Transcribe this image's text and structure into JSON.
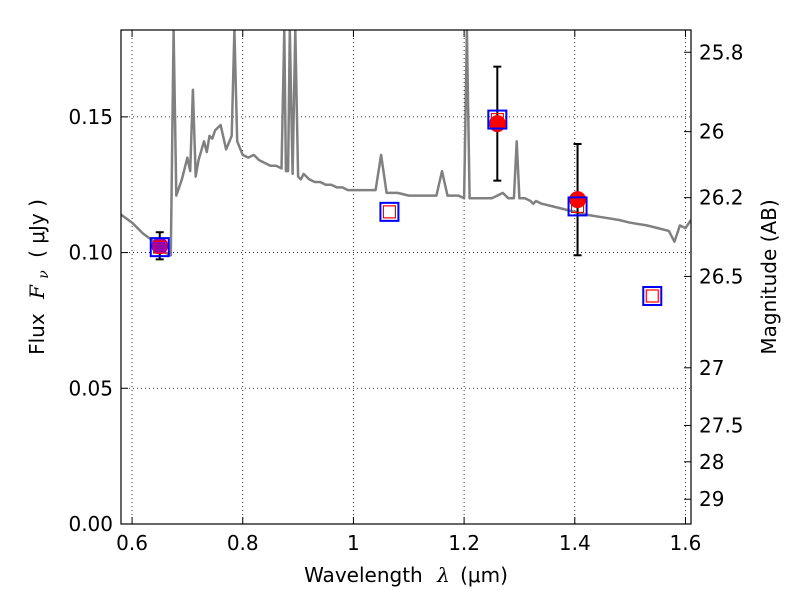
{
  "chart_data": {
    "type": "scatter",
    "xlabel": "Wavelength",
    "xlabel_symbol": "λ",
    "xlabel_unit": "(μm)",
    "ylabel": "Flux",
    "ylabel_symbol": "F",
    "ylabel_subscript": "ν",
    "ylabel_unit": "( μJy )",
    "y2label": "Magnitude (AB)",
    "xlim": [
      0.58,
      1.61
    ],
    "ylim": [
      0.0,
      0.182
    ],
    "x_ticks": [
      0.6,
      0.8,
      1.0,
      1.2,
      1.4,
      1.6
    ],
    "x_tick_labels": [
      "0.6",
      "0.8",
      "1",
      "1.2",
      "1.4",
      "1.6"
    ],
    "y_ticks": [
      0.0,
      0.05,
      0.1,
      0.15
    ],
    "y_tick_labels": [
      "0.00",
      "0.05",
      "0.10",
      "0.15"
    ],
    "y2_ticks": [
      25.8,
      26.0,
      26.2,
      26.5,
      27.0,
      27.5,
      28.0,
      29.0
    ],
    "y2_tick_labels": [
      "25.8",
      "26",
      "26.2",
      "26.5",
      "27",
      "27.5",
      "28",
      "29"
    ],
    "grid": true,
    "series": [
      {
        "style": "line",
        "color": "#808080",
        "x": [
          0.58,
          0.6,
          0.62,
          0.64,
          0.66,
          0.67,
          0.675,
          0.68,
          0.69,
          0.7,
          0.705,
          0.71,
          0.715,
          0.72,
          0.73,
          0.735,
          0.74,
          0.745,
          0.75,
          0.76,
          0.77,
          0.78,
          0.785,
          0.79,
          0.8,
          0.81,
          0.82,
          0.83,
          0.84,
          0.85,
          0.86,
          0.87,
          0.875,
          0.878,
          0.882,
          0.885,
          0.89,
          0.895,
          0.9,
          0.905,
          0.91,
          0.92,
          0.93,
          0.94,
          0.95,
          0.96,
          0.97,
          0.98,
          0.99,
          1.0,
          1.02,
          1.04,
          1.05,
          1.06,
          1.065,
          1.07,
          1.08,
          1.1,
          1.12,
          1.15,
          1.16,
          1.17,
          1.18,
          1.19,
          1.2,
          1.205,
          1.21,
          1.22,
          1.23,
          1.24,
          1.25,
          1.26,
          1.27,
          1.28,
          1.29,
          1.295,
          1.3,
          1.31,
          1.32,
          1.325,
          1.33,
          1.34,
          1.36,
          1.38,
          1.4,
          1.42,
          1.45,
          1.48,
          1.5,
          1.53,
          1.55,
          1.57,
          1.58,
          1.585,
          1.59,
          1.6,
          1.61
        ],
        "y": [
          0.114,
          0.111,
          0.107,
          0.104,
          0.1,
          0.099,
          0.182,
          0.121,
          0.127,
          0.135,
          0.13,
          0.16,
          0.128,
          0.134,
          0.141,
          0.137,
          0.143,
          0.142,
          0.145,
          0.147,
          0.138,
          0.143,
          0.182,
          0.141,
          0.136,
          0.135,
          0.136,
          0.134,
          0.133,
          0.132,
          0.132,
          0.131,
          0.182,
          0.13,
          0.13,
          0.182,
          0.129,
          0.182,
          0.128,
          0.127,
          0.129,
          0.127,
          0.126,
          0.126,
          0.125,
          0.125,
          0.124,
          0.124,
          0.123,
          0.123,
          0.123,
          0.123,
          0.136,
          0.122,
          0.122,
          0.122,
          0.122,
          0.121,
          0.121,
          0.121,
          0.13,
          0.121,
          0.121,
          0.121,
          0.12,
          0.182,
          0.12,
          0.12,
          0.12,
          0.12,
          0.12,
          0.121,
          0.122,
          0.12,
          0.12,
          0.141,
          0.12,
          0.12,
          0.119,
          0.118,
          0.119,
          0.118,
          0.117,
          0.116,
          0.115,
          0.114,
          0.113,
          0.112,
          0.111,
          0.11,
          0.109,
          0.108,
          0.104,
          0.107,
          0.11,
          0.109,
          0.112
        ]
      },
      {
        "style": "markers",
        "marker": "circle",
        "errorbars": true,
        "colors": [
          "#9a00a8",
          "#ff0000",
          "#ff0000"
        ],
        "x": [
          0.65,
          1.26,
          1.405
        ],
        "y": [
          0.1025,
          0.1475,
          0.1195
        ],
        "yerr": [
          0.005,
          0.021,
          0.0205
        ]
      },
      {
        "style": "markers",
        "marker": "square-open",
        "edgecolor": "#0000ff",
        "x": [
          0.65,
          1.065,
          1.26,
          1.405,
          1.54
        ],
        "y": [
          0.102,
          0.115,
          0.149,
          0.117,
          0.084
        ]
      },
      {
        "style": "markers",
        "marker": "square-open-small",
        "edgecolor": "#ff0000",
        "x": [
          0.65,
          1.065,
          1.26,
          1.405,
          1.54
        ],
        "y": [
          0.102,
          0.115,
          0.149,
          0.117,
          0.084
        ]
      }
    ]
  }
}
